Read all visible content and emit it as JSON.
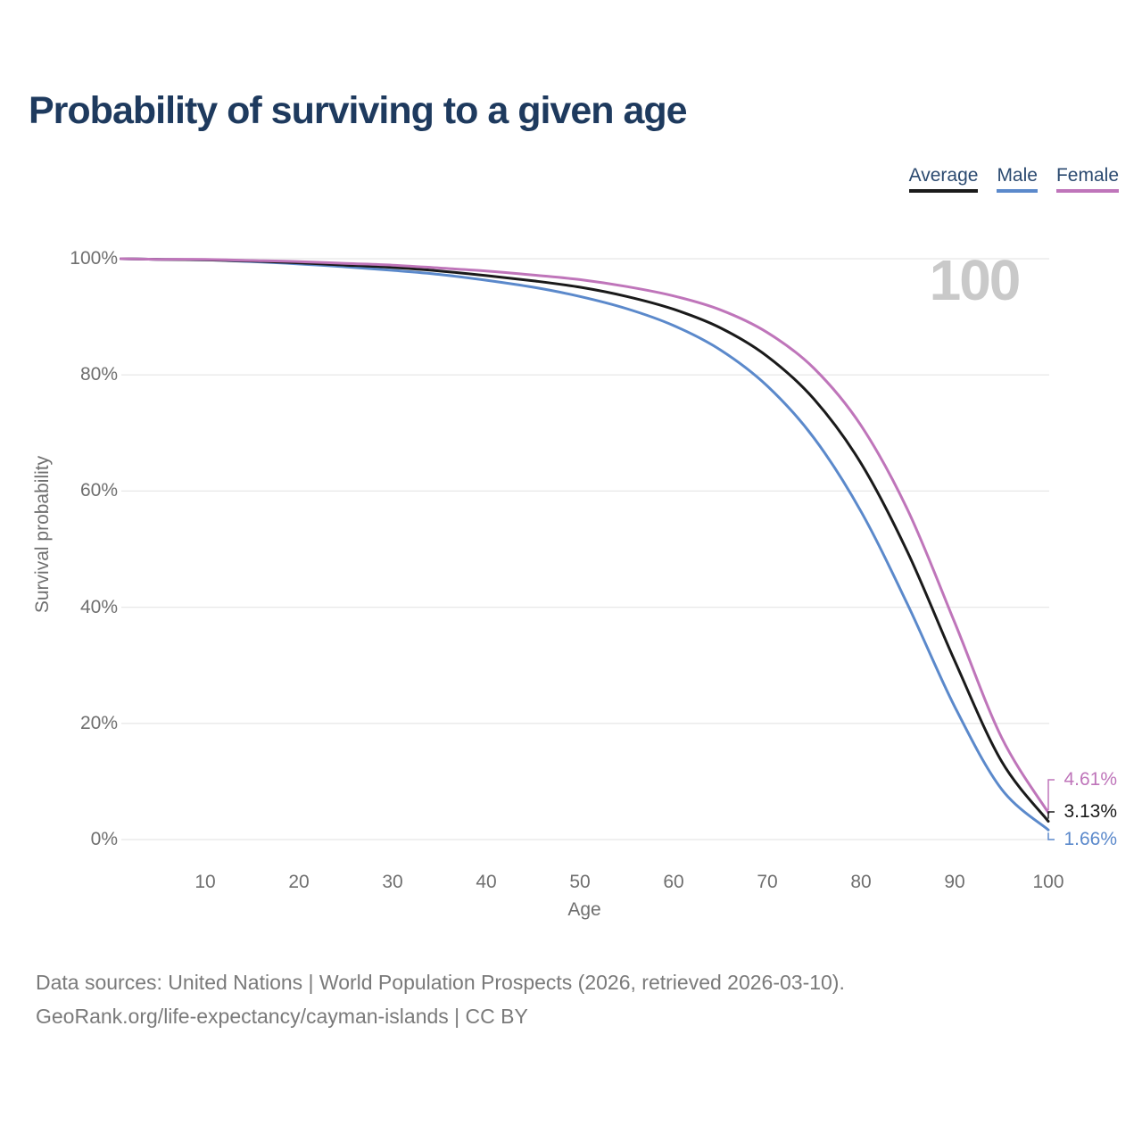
{
  "header": {
    "title": "Probability of surviving to a given age"
  },
  "legend": {
    "position": "top-right"
  },
  "chart_data": {
    "type": "line",
    "title": "Probability of surviving to a given age",
    "xlabel": "Age",
    "ylabel": "Survival probability",
    "xlim": [
      1,
      100
    ],
    "ylim": [
      0,
      100
    ],
    "grid": "horizontal",
    "legend_position": "top-right",
    "x_ticks": [
      10,
      20,
      30,
      40,
      50,
      60,
      70,
      80,
      90,
      100
    ],
    "y_ticks": [
      {
        "value": 0,
        "label": "0%"
      },
      {
        "value": 20,
        "label": "20%"
      },
      {
        "value": 40,
        "label": "40%"
      },
      {
        "value": 60,
        "label": "60%"
      },
      {
        "value": 80,
        "label": "80%"
      },
      {
        "value": 100,
        "label": "100%"
      }
    ],
    "hover_watermark": "100",
    "ages": [
      1,
      5,
      10,
      15,
      20,
      25,
      30,
      35,
      40,
      45,
      50,
      55,
      60,
      65,
      70,
      75,
      80,
      85,
      90,
      95,
      100
    ],
    "series": [
      {
        "name": "Average",
        "color": "#1a1a1a",
        "end_label": "3.13%",
        "end_value": 3.13,
        "values": [
          100,
          99.9,
          99.8,
          99.6,
          99.3,
          98.9,
          98.5,
          97.9,
          97.1,
          96.2,
          95.1,
          93.5,
          91.3,
          88.1,
          83.2,
          75.8,
          64.8,
          49.4,
          30.8,
          13.5,
          3.13
        ]
      },
      {
        "name": "Male",
        "color": "#5b89cb",
        "end_label": "1.66%",
        "end_value": 1.66,
        "values": [
          100,
          99.9,
          99.8,
          99.5,
          99.1,
          98.6,
          98.0,
          97.3,
          96.3,
          95.1,
          93.5,
          91.4,
          88.5,
          84.3,
          78.1,
          69.1,
          56.5,
          40.4,
          22.9,
          8.7,
          1.66
        ]
      },
      {
        "name": "Female",
        "color": "#bf75ba",
        "end_label": "4.61%",
        "end_value": 4.61,
        "values": [
          100,
          99.9,
          99.9,
          99.7,
          99.5,
          99.2,
          98.9,
          98.4,
          97.9,
          97.2,
          96.4,
          95.2,
          93.6,
          91.2,
          87.3,
          81.1,
          71.3,
          56.7,
          37.4,
          17.6,
          4.61
        ]
      }
    ]
  },
  "footer": {
    "line1": "Data sources: United Nations | World Population Prospects (2026, retrieved 2026-03-10).",
    "line2": "GeoRank.org/life-expectancy/cayman-islands | CC BY"
  }
}
